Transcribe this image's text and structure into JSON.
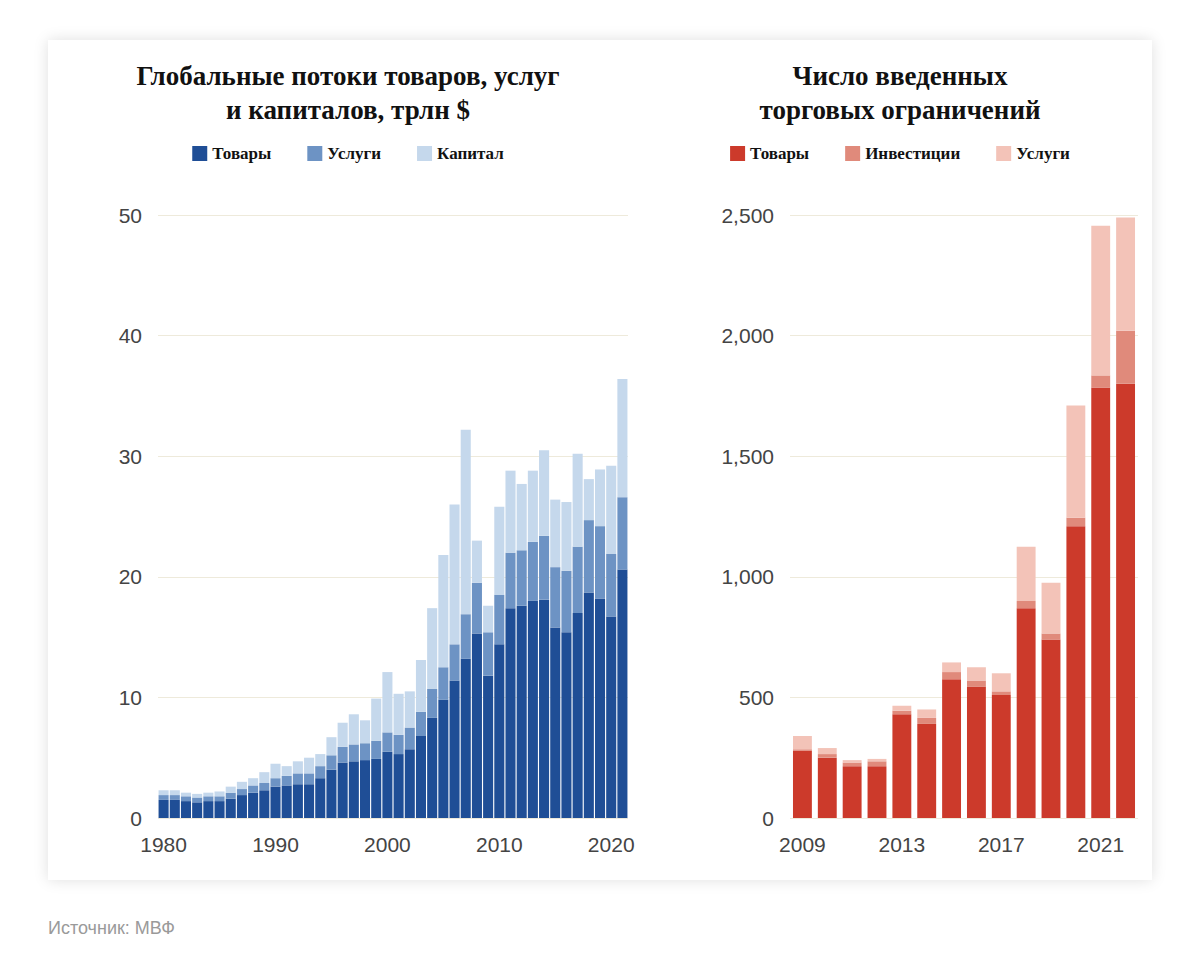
{
  "chart_data": [
    {
      "type": "bar",
      "title": "Глобальные потоки товаров, услуг\nи капиталов, трлн $",
      "stacked": true,
      "grid": true,
      "legend": "top",
      "categories": [
        "1980",
        null,
        null,
        null,
        null,
        null,
        null,
        null,
        null,
        null,
        "1990",
        null,
        null,
        null,
        null,
        null,
        null,
        null,
        null,
        null,
        "2000",
        null,
        null,
        null,
        null,
        null,
        null,
        null,
        null,
        null,
        "2010",
        null,
        null,
        null,
        null,
        null,
        null,
        null,
        null,
        null,
        "2020",
        null
      ],
      "series": [
        {
          "name": "Товары",
          "color": "#1f4e96",
          "values": [
            1.5,
            1.5,
            1.4,
            1.3,
            1.4,
            1.4,
            1.6,
            1.9,
            2.1,
            2.3,
            2.6,
            2.7,
            2.8,
            2.8,
            3.3,
            4.0,
            4.6,
            4.7,
            4.8,
            4.9,
            5.5,
            5.3,
            5.7,
            6.8,
            8.3,
            9.8,
            11.4,
            13.2,
            15.3,
            11.8,
            14.4,
            17.4,
            17.6,
            18.0,
            18.1,
            15.8,
            15.4,
            17.0,
            18.7,
            18.2,
            16.7,
            20.6
          ]
        },
        {
          "name": "Услуги",
          "color": "#6d93c4",
          "values": [
            0.4,
            0.4,
            0.4,
            0.4,
            0.4,
            0.4,
            0.5,
            0.5,
            0.6,
            0.6,
            0.7,
            0.8,
            0.9,
            0.9,
            1.0,
            1.2,
            1.3,
            1.4,
            1.4,
            1.5,
            1.6,
            1.6,
            1.8,
            2.0,
            2.4,
            2.7,
            3.0,
            3.7,
            4.2,
            3.6,
            4.1,
            4.6,
            4.6,
            4.9,
            5.3,
            5.0,
            5.1,
            5.5,
            6.0,
            6.0,
            5.2,
            6.0
          ]
        },
        {
          "name": "Капитал",
          "color": "#c5d8ec",
          "values": [
            0.4,
            0.4,
            0.3,
            0.3,
            0.3,
            0.4,
            0.5,
            0.6,
            0.6,
            0.9,
            1.2,
            0.8,
            1.0,
            1.3,
            1.0,
            1.5,
            2.0,
            2.5,
            1.9,
            3.5,
            5.0,
            3.4,
            3.0,
            4.3,
            6.7,
            9.3,
            11.6,
            15.3,
            3.5,
            2.2,
            7.3,
            6.8,
            5.5,
            5.9,
            7.1,
            5.6,
            5.7,
            7.7,
            3.4,
            4.7,
            7.3,
            9.8
          ]
        }
      ],
      "ylim": [
        0,
        50
      ],
      "yticks": [
        0,
        10,
        20,
        30,
        40,
        50
      ]
    },
    {
      "type": "bar",
      "title": "Число введенных\nторговых ограничений",
      "stacked": true,
      "grid": true,
      "legend": "top",
      "categories": [
        "2009",
        null,
        null,
        null,
        "2013",
        null,
        null,
        null,
        "2017",
        null,
        null,
        null,
        "2021",
        null
      ],
      "series": [
        {
          "name": "Товары",
          "color": "#cc3a2b",
          "values": [
            280,
            250,
            215,
            215,
            430,
            390,
            575,
            545,
            510,
            870,
            740,
            1210,
            1785,
            1800
          ]
        },
        {
          "name": "Инвестиции",
          "color": "#e08a7b",
          "values": [
            5,
            15,
            15,
            20,
            15,
            25,
            30,
            25,
            15,
            30,
            25,
            35,
            50,
            220
          ]
        },
        {
          "name": "Услуги",
          "color": "#f3c3b8",
          "values": [
            55,
            25,
            10,
            10,
            20,
            35,
            40,
            55,
            75,
            225,
            210,
            465,
            620,
            470
          ]
        }
      ],
      "ylim": [
        0,
        2500
      ],
      "yticks": [
        0,
        500,
        {
          "value": 1000,
          "label": "1,000"
        },
        {
          "value": 1500,
          "label": "1,500"
        },
        {
          "value": 2000,
          "label": "2,000"
        },
        {
          "value": 2500,
          "label": "2,500"
        }
      ]
    }
  ],
  "source": "Источник: МВФ"
}
